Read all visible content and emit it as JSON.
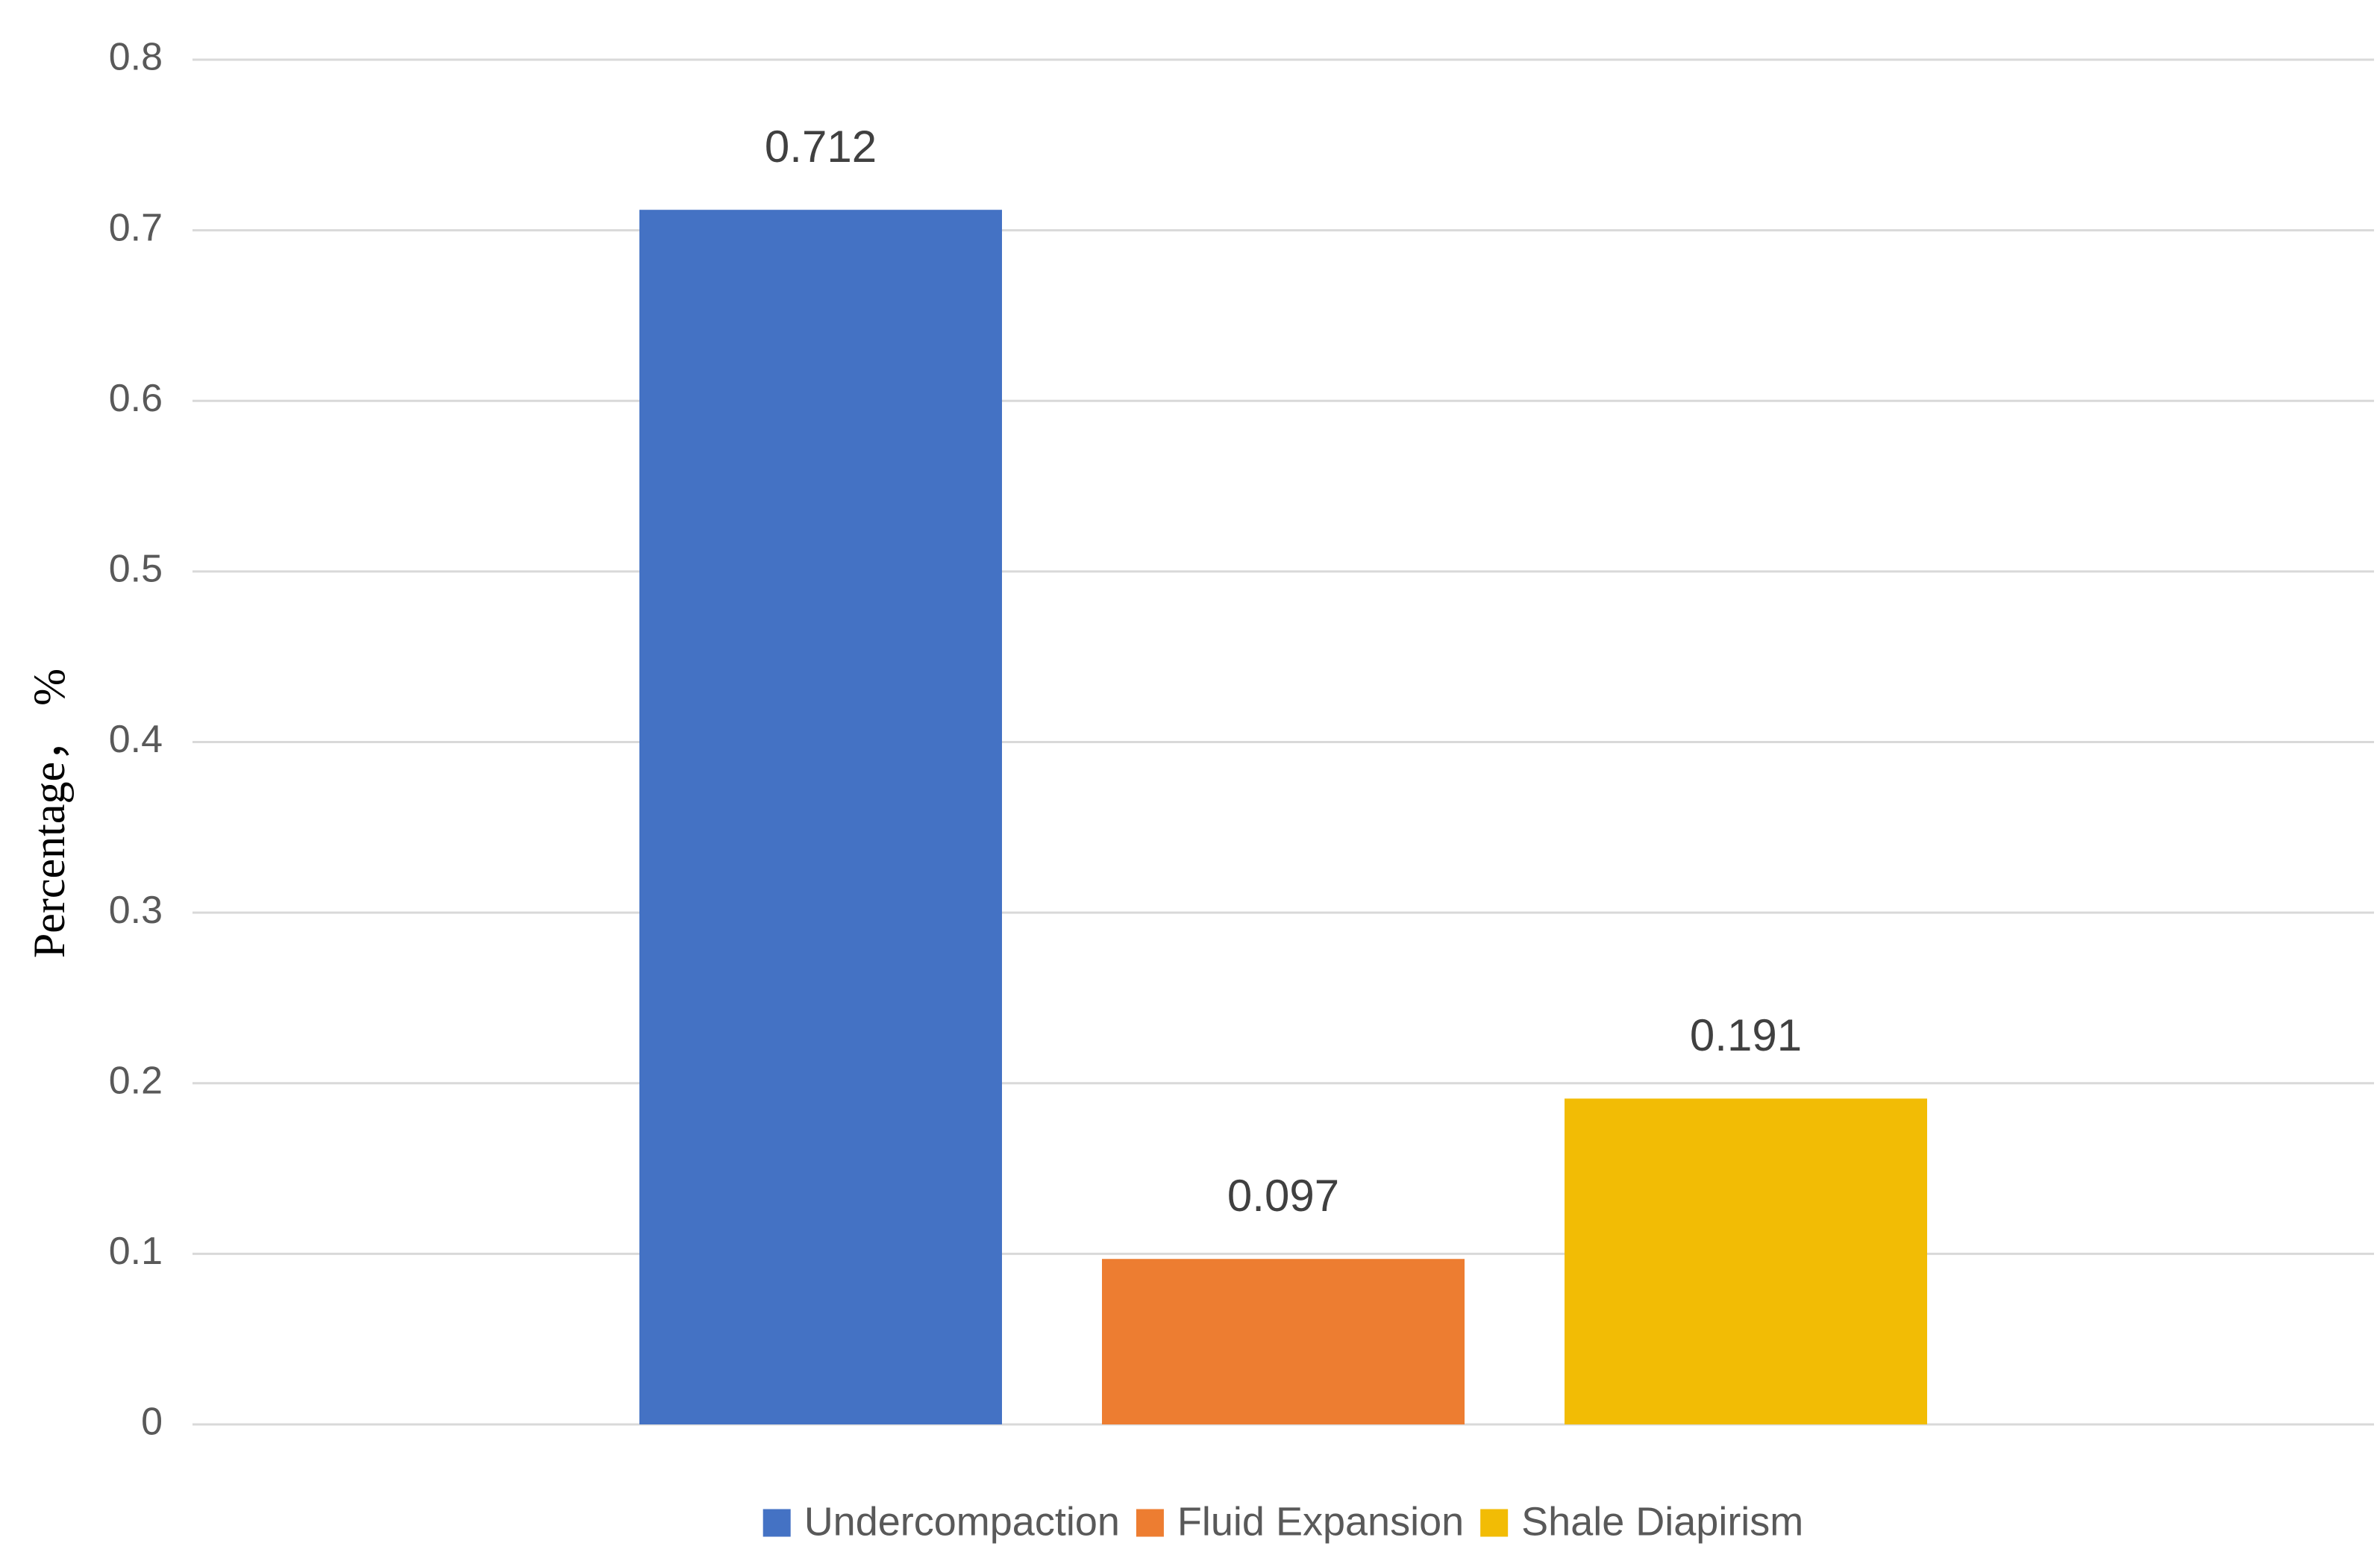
{
  "chart_data": {
    "type": "bar",
    "y_label": "Percentage， %",
    "categories": [
      null
    ],
    "series": [
      {
        "name": "Undercompaction",
        "color": "#4472c4",
        "values": [
          0.712
        ]
      },
      {
        "name": "Fluid Expansion",
        "color": "#ed7d31",
        "values": [
          0.097
        ]
      },
      {
        "name": "Shale Diapirism",
        "color": "#f2bc05",
        "values": [
          0.191
        ]
      }
    ],
    "ylim": [
      0,
      0.8
    ],
    "yticks": [
      0,
      0.1,
      0.2,
      0.3,
      0.4,
      0.5,
      0.6,
      0.7,
      0.8
    ],
    "grid": true,
    "legend": "bottom",
    "data_labels": true
  }
}
